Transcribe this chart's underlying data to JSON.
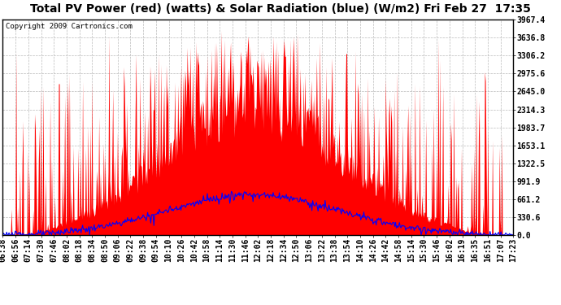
{
  "title": "Total PV Power (red) (watts) & Solar Radiation (blue) (W/m2) Fri Feb 27  17:35",
  "copyright": "Copyright 2009 Cartronics.com",
  "background_color": "#ffffff",
  "plot_bg_color": "#ffffff",
  "grid_color": "#aaaaaa",
  "y_ticks": [
    0.0,
    330.6,
    661.2,
    991.9,
    1322.5,
    1653.1,
    1983.7,
    2314.3,
    2645.0,
    2975.6,
    3306.2,
    3636.8,
    3967.4
  ],
  "ylim": [
    0,
    3967.4
  ],
  "x_labels": [
    "06:38",
    "06:56",
    "07:14",
    "07:30",
    "07:46",
    "08:02",
    "08:18",
    "08:34",
    "08:50",
    "09:06",
    "09:22",
    "09:38",
    "09:54",
    "10:10",
    "10:26",
    "10:42",
    "10:58",
    "11:14",
    "11:30",
    "11:46",
    "12:02",
    "12:18",
    "12:34",
    "12:50",
    "13:06",
    "13:22",
    "13:38",
    "13:54",
    "14:10",
    "14:26",
    "14:42",
    "14:58",
    "15:14",
    "15:30",
    "15:46",
    "16:02",
    "16:19",
    "16:35",
    "16:51",
    "17:07",
    "17:23"
  ],
  "red_color": "#ff0000",
  "blue_color": "#0000ff",
  "title_fontsize": 10,
  "tick_fontsize": 7,
  "copyright_fontsize": 6.5,
  "solar_peak": 750,
  "pv_peak": 3900
}
